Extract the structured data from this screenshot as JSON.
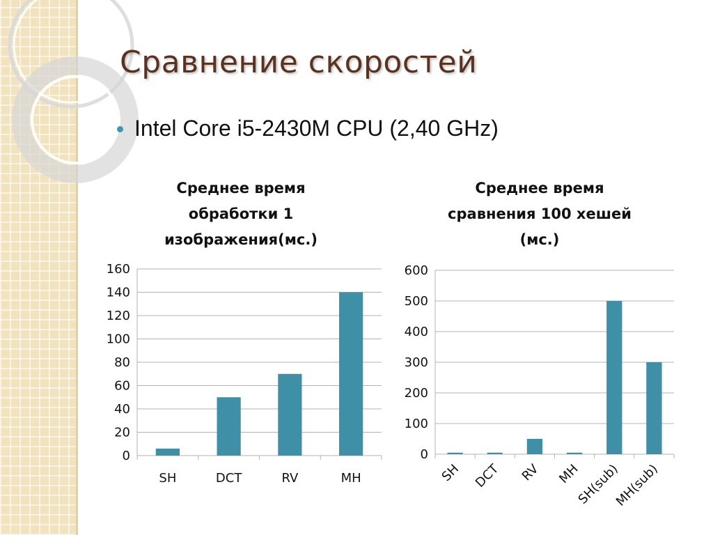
{
  "slide": {
    "title": "Сравнение скоростей",
    "bullet": "Intel Core i5-2430M CPU (2,40 GHz)"
  },
  "colors": {
    "bar": "#3f8fa6",
    "title": "#5a3220",
    "bullet": "#3f96ad",
    "gridline": "#b3b3b3",
    "decoration": "#f2e3bf"
  },
  "chart_data": [
    {
      "type": "bar",
      "title_lines": [
        "Среднее время",
        "обработки 1",
        "изображения(мс.)"
      ],
      "categories": [
        "SH",
        "DCT",
        "RV",
        "MH"
      ],
      "values": [
        6,
        50,
        70,
        140
      ],
      "ylim": [
        0,
        160
      ],
      "yticks": [
        "0",
        "20",
        "40",
        "60",
        "80",
        "100",
        "120",
        "140",
        "160"
      ],
      "ytick_values": [
        0,
        20,
        40,
        60,
        80,
        100,
        120,
        140,
        160
      ],
      "grid": true,
      "xlabels_rotated": false
    },
    {
      "type": "bar",
      "title_lines": [
        "Среднее время",
        "сравнения 100 хешей",
        "(мс.)"
      ],
      "categories": [
        "SH",
        "DCT",
        "RV",
        "MH",
        "SH(sub)",
        "MH(sub)"
      ],
      "values": [
        5,
        5,
        50,
        5,
        500,
        300
      ],
      "ylim": [
        0,
        600
      ],
      "yticks": [
        "0",
        "100",
        "200",
        "300",
        "400",
        "500",
        "600"
      ],
      "ytick_values": [
        0,
        100,
        200,
        300,
        400,
        500,
        600
      ],
      "grid": true,
      "xlabels_rotated": true
    }
  ]
}
